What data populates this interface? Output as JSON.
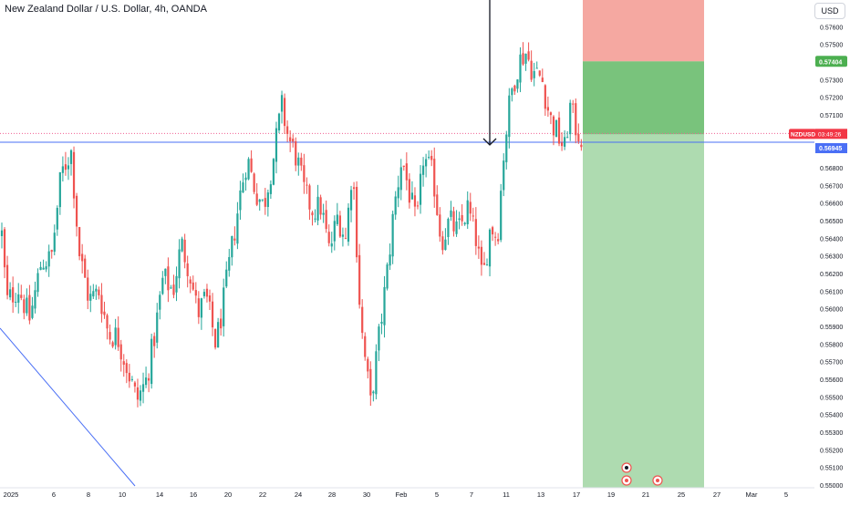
{
  "header": {
    "title": "New Zealand Dollar / U.S. Dollar, 4h, OANDA",
    "currency": "USD"
  },
  "symbol_label": {
    "symbol": "NZDUSD",
    "countdown": "03:49:26",
    "price": "0.56945"
  },
  "position": {
    "target_label": "0.57404",
    "stop_label": "0.54935",
    "entry": 0.5699,
    "target": 0.57404,
    "stop_bottom": 0.54935
  },
  "colors": {
    "up": "#26a69a",
    "down": "#ef5350",
    "profit_zone": "#4caf50",
    "loss_zone": "#f28b82",
    "price_line": "#4a6ff5",
    "trend_line": "#4a6ff5",
    "last_price_line": "#f06292"
  },
  "chart_data": {
    "type": "candlestick",
    "title": "New Zealand Dollar / U.S. Dollar, 4h, OANDA",
    "y_axis": {
      "ticks": [
        "0.57600",
        "0.57500",
        "0.57300",
        "0.57200",
        "0.57100",
        "0.56900",
        "0.56800",
        "0.56700",
        "0.56600",
        "0.56500",
        "0.56400",
        "0.56300",
        "0.56200",
        "0.56100",
        "0.56000",
        "0.55900",
        "0.55800",
        "0.55700",
        "0.55600",
        "0.55500",
        "0.55400",
        "0.55300",
        "0.55200",
        "0.55100",
        "0.55000"
      ],
      "range": [
        0.5492,
        0.5778
      ]
    },
    "x_axis": {
      "ticks": [
        "2025",
        "6",
        "8",
        "10",
        "14",
        "16",
        "20",
        "22",
        "24",
        "28",
        "30",
        "Feb",
        "5",
        "7",
        "11",
        "13",
        "17",
        "19",
        "21",
        "25",
        "27",
        "Mar",
        "5"
      ]
    },
    "price_levels": {
      "last_price": 0.56945,
      "horizontal_line": 0.5696
    },
    "close_path": [
      [
        0.0,
        0.5642
      ],
      [
        0.3,
        0.5604
      ],
      [
        1.0,
        0.5612
      ],
      [
        1.7,
        0.5594
      ],
      [
        2.4,
        0.5627
      ],
      [
        3.0,
        0.5628
      ],
      [
        3.6,
        0.5676
      ],
      [
        4.2,
        0.569
      ],
      [
        4.7,
        0.5632
      ],
      [
        5.3,
        0.5605
      ],
      [
        5.9,
        0.561
      ],
      [
        6.5,
        0.5585
      ],
      [
        7.0,
        0.5585
      ],
      [
        7.5,
        0.557
      ],
      [
        8.2,
        0.5548
      ],
      [
        8.8,
        0.556
      ],
      [
        9.3,
        0.5586
      ],
      [
        9.8,
        0.5618
      ],
      [
        10.4,
        0.561
      ],
      [
        10.9,
        0.5637
      ],
      [
        11.4,
        0.5622
      ],
      [
        11.9,
        0.5597
      ],
      [
        12.4,
        0.5607
      ],
      [
        13.0,
        0.558
      ],
      [
        13.4,
        0.56
      ],
      [
        13.9,
        0.563
      ],
      [
        14.5,
        0.5666
      ],
      [
        14.9,
        0.5686
      ],
      [
        15.4,
        0.5667
      ],
      [
        15.9,
        0.5658
      ],
      [
        16.5,
        0.5686
      ],
      [
        17.0,
        0.5715
      ],
      [
        17.4,
        0.5697
      ],
      [
        17.9,
        0.5686
      ],
      [
        18.4,
        0.5665
      ],
      [
        18.9,
        0.5656
      ],
      [
        19.4,
        0.5658
      ],
      [
        19.9,
        0.5632
      ],
      [
        20.4,
        0.5653
      ],
      [
        20.9,
        0.5639
      ],
      [
        21.3,
        0.5683
      ],
      [
        21.8,
        0.5592
      ],
      [
        22.4,
        0.5546
      ],
      [
        22.8,
        0.5576
      ],
      [
        23.4,
        0.562
      ],
      [
        23.8,
        0.5655
      ],
      [
        24.3,
        0.5686
      ],
      [
        24.7,
        0.5668
      ],
      [
        25.2,
        0.5646
      ],
      [
        25.6,
        0.5686
      ],
      [
        26.2,
        0.5675
      ],
      [
        26.7,
        0.5638
      ],
      [
        27.2,
        0.565
      ],
      [
        27.7,
        0.5643
      ],
      [
        28.3,
        0.5657
      ],
      [
        28.8,
        0.564
      ],
      [
        29.2,
        0.5615
      ],
      [
        29.7,
        0.5648
      ],
      [
        30.1,
        0.564
      ],
      [
        30.5,
        0.569
      ],
      [
        30.9,
        0.5721
      ],
      [
        31.4,
        0.574
      ],
      [
        31.8,
        0.5746
      ],
      [
        32.3,
        0.5734
      ],
      [
        32.8,
        0.5731
      ],
      [
        33.3,
        0.5708
      ],
      [
        33.8,
        0.5698
      ],
      [
        34.2,
        0.569
      ],
      [
        34.5,
        0.5715
      ],
      [
        34.9,
        0.5702
      ],
      [
        35.2,
        0.5697
      ]
    ],
    "position_tool": {
      "type": "short",
      "entry": 0.5699,
      "target": 0.57404,
      "stop": 0.54935
    }
  }
}
